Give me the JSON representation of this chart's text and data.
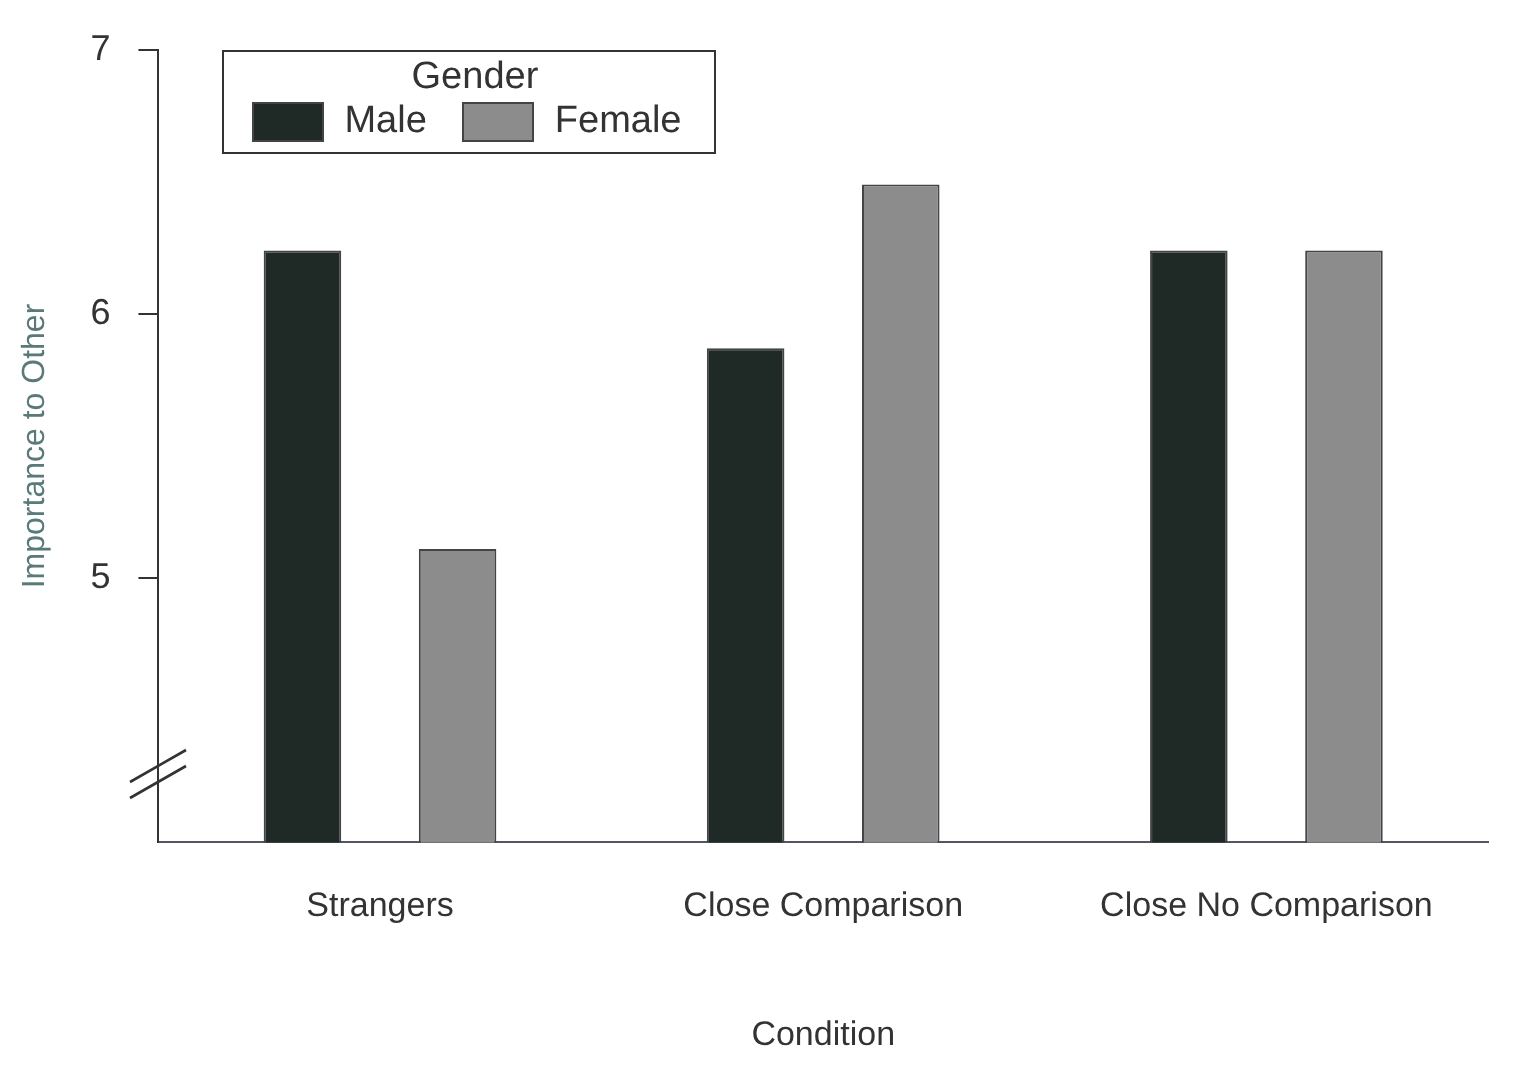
{
  "chart_data": {
    "type": "bar",
    "xlabel": "Condition",
    "ylabel": "Importance to Other",
    "legend_title": "Gender",
    "legend": "top left",
    "categories": [
      "Strangers",
      "Close Comparison",
      "Close No Comparison"
    ],
    "series": [
      {
        "name": "Male",
        "color": "#1f2a27",
        "values": [
          6.24,
          5.87,
          6.24
        ]
      },
      {
        "name": "Female",
        "color": "#8c8c8c",
        "values": [
          5.11,
          6.49,
          6.24
        ]
      }
    ],
    "ylim": [
      4,
      7
    ],
    "yticks": [
      5,
      6,
      7
    ],
    "grid": false
  }
}
